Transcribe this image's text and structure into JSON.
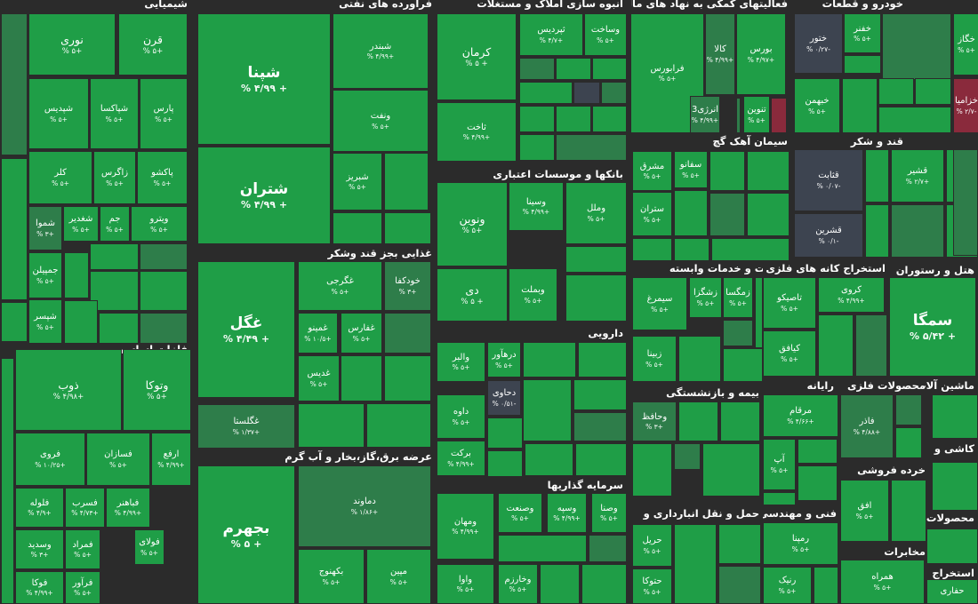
{
  "colors": {
    "up": "#1f9e47",
    "up_light": "#23a24a",
    "mid": "#2e7d4a",
    "dark": "#2a5c3c",
    "flat": "#3d4450",
    "down": "#8a2a3c",
    "bg": "#2b2b2b"
  },
  "sectors": [
    {
      "id": "chem",
      "label": "شیمیایی"
    },
    {
      "id": "oil",
      "label": "فراورده های نفتی"
    },
    {
      "id": "realestate",
      "label": "انبوه سازی املاک و مستغلات"
    },
    {
      "id": "finance",
      "label": "فعالیتهای کمکی به نهاد های مالی"
    },
    {
      "id": "auto",
      "label": "خودرو و قطعات"
    },
    {
      "id": "metals",
      "label": "فلزات اساسی"
    },
    {
      "id": "food",
      "label": "غذایی بجز قند وشکر"
    },
    {
      "id": "banks",
      "label": "بانکها و موسسات اعتباری"
    },
    {
      "id": "cement",
      "label": "سیمان آهک گچ"
    },
    {
      "id": "sugar",
      "label": "قند و شکر"
    },
    {
      "id": "hotel",
      "label": "هتل و رستوران"
    },
    {
      "id": "farming",
      "label": "زراعت و خدمات وابسته"
    },
    {
      "id": "mining",
      "label": "استخراج کانه های فلزی"
    },
    {
      "id": "pharma",
      "label": "دارویی"
    },
    {
      "id": "power",
      "label": "عرضه برق،گاز،بخار و آب گرم"
    },
    {
      "id": "insurance",
      "label": "بیمه و بازنشستگی"
    },
    {
      "id": "computer",
      "label": "رایانه"
    },
    {
      "id": "metalprod",
      "label": "محصولات فلزی"
    },
    {
      "id": "machinery",
      "label": "ماشین آلات و"
    },
    {
      "id": "tile",
      "label": "کاشی و"
    },
    {
      "id": "retail",
      "label": "خرده فروشی"
    },
    {
      "id": "investment",
      "label": "سرمایه گذاریها"
    },
    {
      "id": "transport",
      "label": "حمل و نقل انبارداری و"
    },
    {
      "id": "engineering",
      "label": "فنی و مهندسی"
    },
    {
      "id": "telecom",
      "label": "مخابرات"
    },
    {
      "id": "products",
      "label": "محصولات"
    },
    {
      "id": "extraction",
      "label": "استخراج"
    }
  ],
  "tiles": [
    {
      "name": "نوری",
      "change": "+۵ %",
      "tone": "up"
    },
    {
      "name": "قرن",
      "change": "+۵ %",
      "tone": "up"
    },
    {
      "name": "شپدیس",
      "change": "+۵ %",
      "tone": "up"
    },
    {
      "name": "شپاکسا",
      "change": "+۵ %",
      "tone": "up"
    },
    {
      "name": "پارس",
      "change": "+۵ %",
      "tone": "up"
    },
    {
      "name": "کلر",
      "change": "+۵ %",
      "tone": "up"
    },
    {
      "name": "زاگرس",
      "change": "+۵ %",
      "tone": "up"
    },
    {
      "name": "پاکشو",
      "change": "+۵ %",
      "tone": "up"
    },
    {
      "name": "شموا",
      "change": "+۳ %",
      "tone": "mid"
    },
    {
      "name": "شغدیر",
      "change": "+۵ %",
      "tone": "up"
    },
    {
      "name": "جم",
      "change": "+۵ %",
      "tone": "up"
    },
    {
      "name": "ویترو",
      "change": "+۵ %",
      "tone": "up"
    },
    {
      "name": "جمپیلن",
      "change": "+۵ %",
      "tone": "up"
    },
    {
      "name": "شپسر",
      "change": "+۵ %",
      "tone": "up"
    },
    {
      "name": "شپنا",
      "change": "+ ۴/۹۹ %",
      "tone": "up"
    },
    {
      "name": "شبندر",
      "change": "+۴/۹۹ %",
      "tone": "up"
    },
    {
      "name": "ونفت",
      "change": "+۵ %",
      "tone": "up"
    },
    {
      "name": "شتران",
      "change": "+ ۴/۹۹ %",
      "tone": "up"
    },
    {
      "name": "شبریز",
      "change": "+۵ %",
      "tone": "up"
    },
    {
      "name": "کرمان",
      "change": "+ ۵ %",
      "tone": "up"
    },
    {
      "name": "ثاخت",
      "change": "+۴/۹۹ %",
      "tone": "up"
    },
    {
      "name": "ثپردیس",
      "change": "+۴/۷ %",
      "tone": "up"
    },
    {
      "name": "وساخت",
      "change": "+۵ %",
      "tone": "up"
    },
    {
      "name": "فرابورس",
      "change": "+۵ %",
      "tone": "up"
    },
    {
      "name": "کالا",
      "change": "+۴/۹۹ %",
      "tone": "mid"
    },
    {
      "name": "بورس",
      "change": "+۴/۹۷ %",
      "tone": "up"
    },
    {
      "name": "انرژی3",
      "change": "+۴/۹۹ %",
      "tone": "mid"
    },
    {
      "name": "تنوین",
      "change": "+۵ %",
      "tone": "up"
    },
    {
      "name": "ختور",
      "change": "-۰/۲۷ %",
      "tone": "flat"
    },
    {
      "name": "خفنر",
      "change": "+۵ %",
      "tone": "up"
    },
    {
      "name": "خبهمن",
      "change": "+۵ %",
      "tone": "up"
    },
    {
      "name": "خگاز",
      "change": "+۵ %",
      "tone": "up"
    },
    {
      "name": "خزامیا",
      "change": "-۲/۷ %",
      "tone": "down"
    },
    {
      "name": "ذوب",
      "change": "+۴/۹۸ %",
      "tone": "up"
    },
    {
      "name": "وتوکا",
      "change": "+۵ %",
      "tone": "up"
    },
    {
      "name": "فروی",
      "change": "+۱۰/۲۵ %",
      "tone": "up"
    },
    {
      "name": "فسازان",
      "change": "+۵ %",
      "tone": "up"
    },
    {
      "name": "ارفع",
      "change": "+۴/۹۹ %",
      "tone": "up"
    },
    {
      "name": "فلوله",
      "change": "+۴/۹ %",
      "tone": "up"
    },
    {
      "name": "فسرب",
      "change": "+۴/۷۳ %",
      "tone": "up"
    },
    {
      "name": "فباهنر",
      "change": "+۴/۹۹ %",
      "tone": "up"
    },
    {
      "name": "وسدید",
      "change": "+۳ %",
      "tone": "up"
    },
    {
      "name": "فمراد",
      "change": "+۵ %",
      "tone": "up"
    },
    {
      "name": "فولای",
      "change": "+۵ %",
      "tone": "up"
    },
    {
      "name": "فوکا",
      "change": "+۴/۹۹ %",
      "tone": "up"
    },
    {
      "name": "فرآور",
      "change": "+۵ %",
      "tone": "up"
    },
    {
      "name": "غگرجی",
      "change": "+۵ %",
      "tone": "up"
    },
    {
      "name": "خودکفا",
      "change": "+۳ %",
      "tone": "mid"
    },
    {
      "name": "غگل",
      "change": "+ ۴/۴۹ %",
      "tone": "up"
    },
    {
      "name": "غمینو",
      "change": "+۱۰/۵ %",
      "tone": "up"
    },
    {
      "name": "غفارس",
      "change": "+۵ %",
      "tone": "up"
    },
    {
      "name": "غدیس",
      "change": "+۵ %",
      "tone": "up"
    },
    {
      "name": "غگلستا",
      "change": "+۱/۳۷ %",
      "tone": "mid"
    },
    {
      "name": "ونوین",
      "change": "+۵ %",
      "tone": "up"
    },
    {
      "name": "وسینا",
      "change": "+۴/۹۹ %",
      "tone": "up"
    },
    {
      "name": "وملل",
      "change": "+۵ %",
      "tone": "up"
    },
    {
      "name": "دی",
      "change": "+ ۵ %",
      "tone": "up"
    },
    {
      "name": "وبملت",
      "change": "+۵ %",
      "tone": "up"
    },
    {
      "name": "مشرق",
      "change": "+۵ %",
      "tone": "up"
    },
    {
      "name": "سفانو",
      "change": "+۵ %",
      "tone": "up"
    },
    {
      "name": "ستران",
      "change": "+۵ %",
      "tone": "up"
    },
    {
      "name": "قثابت",
      "change": "-۰/۰۷ %",
      "tone": "flat"
    },
    {
      "name": "قشرین",
      "change": "-۰/۱ %",
      "tone": "flat"
    },
    {
      "name": "قشیر",
      "change": "+۲/۷ %",
      "tone": "up"
    },
    {
      "name": "سیمرغ",
      "change": "+۵ %",
      "tone": "up"
    },
    {
      "name": "زشگزا",
      "change": "+۵ %",
      "tone": "up"
    },
    {
      "name": "زمگسا",
      "change": "+۵ %",
      "tone": "up"
    },
    {
      "name": "زبینا",
      "change": "+۵ %",
      "tone": "up"
    },
    {
      "name": "تاصیکو",
      "change": "+۵ %",
      "tone": "up"
    },
    {
      "name": "کروی",
      "change": "+۴/۹۹ %",
      "tone": "up"
    },
    {
      "name": "کیافق",
      "change": "+۵ %",
      "tone": "up"
    },
    {
      "name": "سمگا",
      "change": "+ ۵/۴۲ %",
      "tone": "up"
    },
    {
      "name": "درهآور",
      "change": "+۵ %",
      "tone": "up"
    },
    {
      "name": "والبر",
      "change": "+۵ %",
      "tone": "up"
    },
    {
      "name": "دحاوی",
      "change": "-۰/۵۱ %",
      "tone": "flat"
    },
    {
      "name": "داوه",
      "change": "+۵ %",
      "tone": "up"
    },
    {
      "name": "برکت",
      "change": "+۴/۹۹ %",
      "tone": "up"
    },
    {
      "name": "بجهرم",
      "change": "+ ۵ %",
      "tone": "up"
    },
    {
      "name": "دماوند",
      "change": "+۱/۸۶ %",
      "tone": "mid"
    },
    {
      "name": "بکهنوج",
      "change": "+۵ %",
      "tone": "up"
    },
    {
      "name": "مپین",
      "change": "+۵ %",
      "tone": "up"
    },
    {
      "name": "وحافظ",
      "change": "+۳ %",
      "tone": "mid"
    },
    {
      "name": "مرقام",
      "change": "+۴/۶۶ %",
      "tone": "up"
    },
    {
      "name": "آپ",
      "change": "+۵ %",
      "tone": "up"
    },
    {
      "name": "فاذر",
      "change": "+۴/۸۸ %",
      "tone": "mid"
    },
    {
      "name": "افق",
      "change": "+۵ %",
      "tone": "up"
    },
    {
      "name": "ومهان",
      "change": "+۴/۹۹ %",
      "tone": "up"
    },
    {
      "name": "وصنعت",
      "change": "+۵ %",
      "tone": "up"
    },
    {
      "name": "وسپه",
      "change": "+۴/۹۹ %",
      "tone": "up"
    },
    {
      "name": "وصنا",
      "change": "+۵ %",
      "tone": "up"
    },
    {
      "name": "واوا",
      "change": "+۵ %",
      "tone": "up"
    },
    {
      "name": "وخارزم",
      "change": "+۵ %",
      "tone": "up"
    },
    {
      "name": "حریل",
      "change": "+۵ %",
      "tone": "up"
    },
    {
      "name": "حتوکا",
      "change": "+۵ %",
      "tone": "up"
    },
    {
      "name": "رمپنا",
      "change": "+۵ %",
      "tone": "up"
    },
    {
      "name": "رنیک",
      "change": "+۵ %",
      "tone": "up"
    },
    {
      "name": "همراه",
      "change": "+۵ %",
      "tone": "up"
    },
    {
      "name": "حفاری",
      "change": "",
      "tone": "up"
    }
  ]
}
